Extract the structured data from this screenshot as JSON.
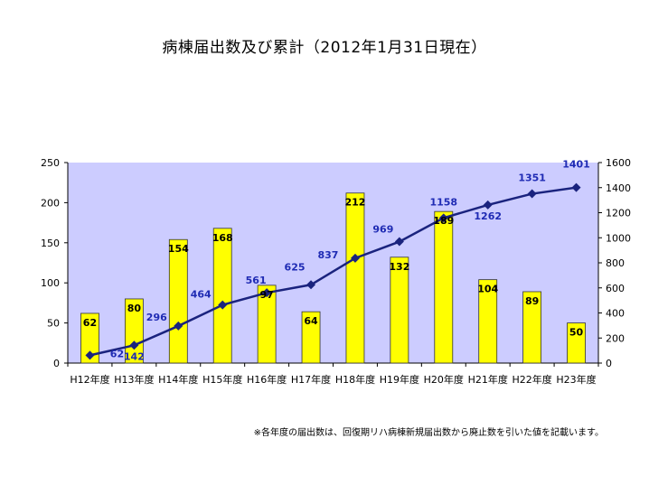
{
  "title": "病棟届出数及び累計（2012年1月31日現在）",
  "note": "※各年度の届出数は、回復期リハ病棟新規届出数から廃止数を引いた値を記載います。",
  "colors": {
    "plot_bg": "#ccccff",
    "bar_fill": "#ffff00",
    "bar_stroke": "#333333",
    "line": "#1a237e",
    "line_label": "#1f2bb4"
  },
  "chart_data": {
    "type": "bar+line",
    "categories": [
      "H12年度",
      "H13年度",
      "H14年度",
      "H15年度",
      "H16年度",
      "H17年度",
      "H18年度",
      "H19年度",
      "H20年度",
      "H21年度",
      "H22年度",
      "H23年度"
    ],
    "series": [
      {
        "type": "bar",
        "axis": "left",
        "values": [
          62,
          80,
          154,
          168,
          97,
          64,
          212,
          132,
          189,
          104,
          89,
          50
        ]
      },
      {
        "type": "line",
        "axis": "right",
        "values": [
          62,
          142,
          296,
          464,
          561,
          625,
          837,
          969,
          1158,
          1262,
          1351,
          1401
        ]
      }
    ],
    "y_left": {
      "min": 0,
      "max": 250,
      "ticks": [
        0,
        50,
        100,
        150,
        200,
        250
      ]
    },
    "y_right": {
      "min": 0,
      "max": 1600,
      "ticks": [
        0,
        200,
        400,
        600,
        800,
        1000,
        1200,
        1400,
        1600
      ]
    },
    "grid": false,
    "legend": "none"
  }
}
